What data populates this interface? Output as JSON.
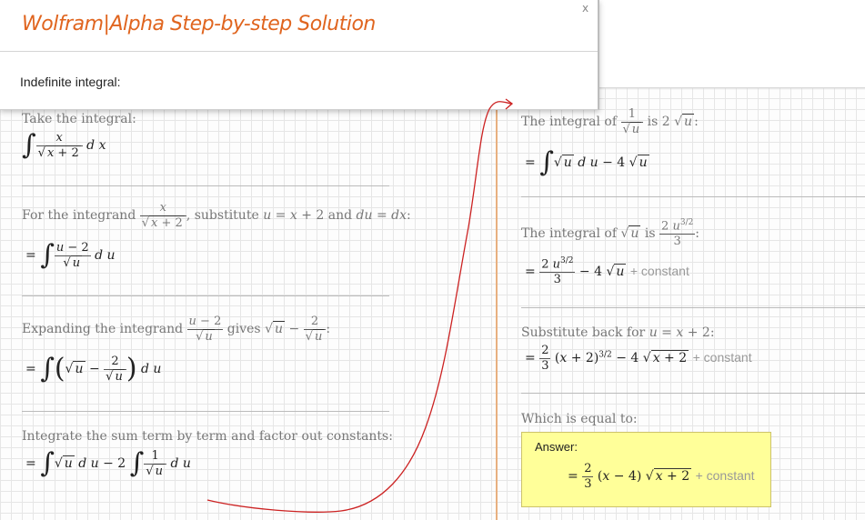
{
  "header": {
    "title": "Wolfram|Alpha Step-by-step Solution",
    "close_label": "x",
    "subtitle": "Indefinite integral:"
  },
  "steps_left": [
    {
      "text": "Take the integral:"
    },
    {
      "text_pre": "For the integrand",
      "text_mid": ", substitute",
      "text_and": "and",
      "text_end": ":"
    },
    {
      "text_pre": "Expanding the integrand",
      "text_mid": "gives",
      "text_end": ":"
    },
    {
      "text": "Integrate the sum term by term and factor out constants:"
    }
  ],
  "steps_right": [
    {
      "text_pre": "The integral of",
      "text_mid": "is",
      "text_end": ":"
    },
    {
      "text_pre": "The integral of",
      "text_mid": "is",
      "text_end": ":"
    },
    {
      "text_pre": "Substitute back for",
      "text_end": ":"
    },
    {
      "text": "Which is equal to:"
    }
  ],
  "constant_label": "+ constant",
  "answer": {
    "label": "Answer:"
  },
  "colors": {
    "title": "#e0651f",
    "answer_bg": "#ffff99",
    "curve": "#cc2222"
  }
}
